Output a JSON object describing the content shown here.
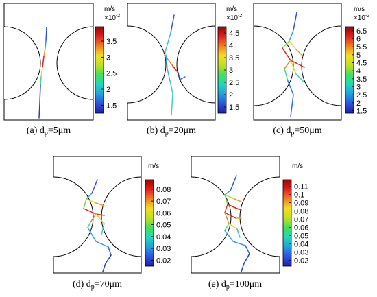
{
  "colormap": {
    "stops": [
      "#2020a0",
      "#3050e0",
      "#20a0e0",
      "#20d8c0",
      "#40e060",
      "#c0e020",
      "#f0e020",
      "#f08020",
      "#e02020",
      "#a00000"
    ]
  },
  "panels": [
    {
      "id": "a",
      "caption": {
        "prefix": "(a) d",
        "sub": "p",
        "suffix": "=5μm"
      },
      "unit": "m/s",
      "exponent": "×10",
      "exponent_power": "-2",
      "ticks": [
        "3.5",
        "3",
        "2.5",
        "2",
        "1.5"
      ],
      "tick_values": [
        3.5,
        3.0,
        2.5,
        2.0,
        1.5
      ],
      "range": [
        1.25,
        3.95
      ]
    },
    {
      "id": "b",
      "caption": {
        "prefix": "(b) d",
        "sub": "p",
        "suffix": "=20μm"
      },
      "unit": "m/s",
      "exponent": "×10",
      "exponent_power": "-2",
      "ticks": [
        "4.5",
        "4",
        "3.5",
        "3",
        "2.5",
        "2",
        "1.5"
      ],
      "tick_values": [
        4.5,
        4.0,
        3.5,
        3.0,
        2.5,
        2.0,
        1.5
      ],
      "range": [
        1.25,
        4.75
      ]
    },
    {
      "id": "c",
      "caption": {
        "prefix": "(c) d",
        "sub": "p",
        "suffix": "=50μm"
      },
      "unit": "m/s",
      "exponent": "×10",
      "exponent_power": "-2",
      "ticks": [
        "6.5",
        "6",
        "5.5",
        "5",
        "4.5",
        "4",
        "3.5",
        "3",
        "2.5",
        "2",
        "1.5"
      ],
      "tick_values": [
        6.5,
        6.0,
        5.5,
        5.0,
        4.5,
        4.0,
        3.5,
        3.0,
        2.5,
        2.0,
        1.5
      ],
      "range": [
        1.35,
        6.75
      ]
    },
    {
      "id": "d",
      "caption": {
        "prefix": "(d) d",
        "sub": "p",
        "suffix": "=70μm"
      },
      "unit": "m/s",
      "exponent": "",
      "exponent_power": "",
      "ticks": [
        "0.08",
        "0.07",
        "0.06",
        "0.05",
        "0.04",
        "0.03",
        "0.02"
      ],
      "tick_values": [
        0.08,
        0.07,
        0.06,
        0.05,
        0.04,
        0.03,
        0.02
      ],
      "range": [
        0.015,
        0.088
      ]
    },
    {
      "id": "e",
      "caption": {
        "prefix": "(e) d",
        "sub": "p",
        "suffix": "=100μm"
      },
      "unit": "m/s",
      "exponent": "",
      "exponent_power": "",
      "ticks": [
        "0.11",
        "0.1",
        "0.09",
        "0.08",
        "0.07",
        "0.06",
        "0.05",
        "0.04",
        "0.03",
        "0.02"
      ],
      "tick_values": [
        0.11,
        0.1,
        0.09,
        0.08,
        0.07,
        0.06,
        0.05,
        0.04,
        0.03,
        0.02
      ],
      "range": [
        0.013,
        0.118
      ]
    }
  ]
}
